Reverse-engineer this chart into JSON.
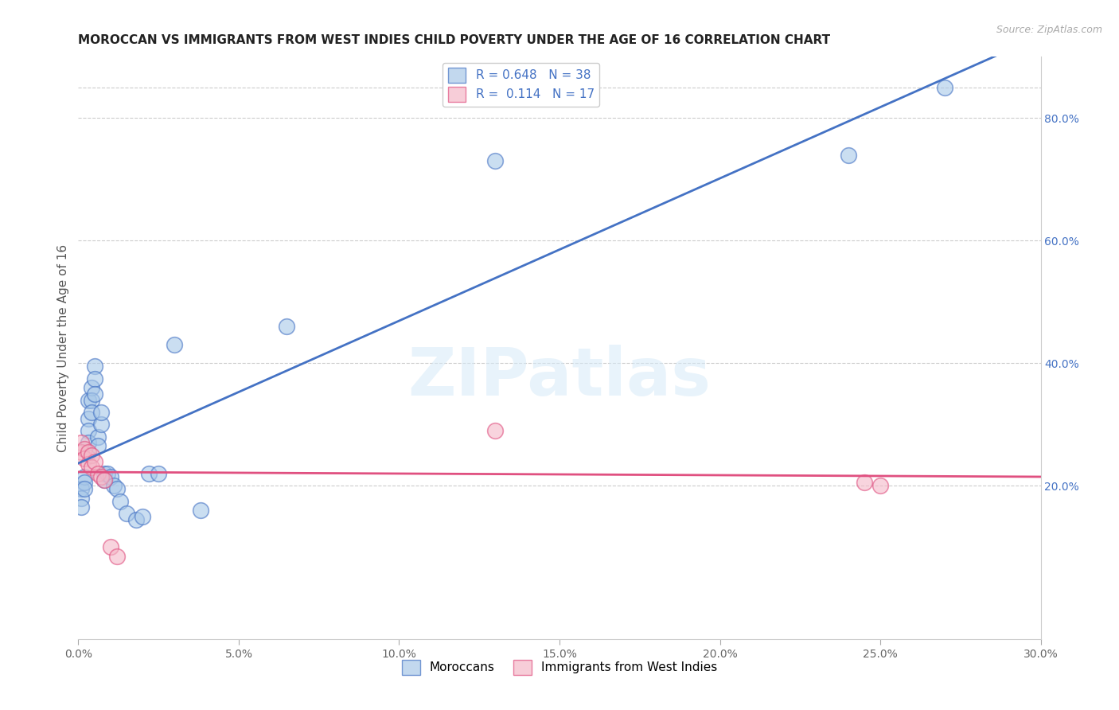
{
  "title": "MOROCCAN VS IMMIGRANTS FROM WEST INDIES CHILD POVERTY UNDER THE AGE OF 16 CORRELATION CHART",
  "source": "Source: ZipAtlas.com",
  "ylabel": "Child Poverty Under the Age of 16",
  "xlim": [
    0.0,
    0.3
  ],
  "ylim": [
    -0.05,
    0.9
  ],
  "xticks": [
    0.0,
    0.05,
    0.1,
    0.15,
    0.2,
    0.25,
    0.3
  ],
  "yticks_right": [
    0.2,
    0.4,
    0.6,
    0.8
  ],
  "blue_color": "#a8c8e8",
  "blue_color_dark": "#4472c4",
  "pink_color": "#f4b8c8",
  "pink_color_dark": "#e05080",
  "r_blue": 0.648,
  "n_blue": 38,
  "r_pink": 0.114,
  "n_pink": 17,
  "blue_label": "Moroccans",
  "pink_label": "Immigrants from West Indies",
  "watermark": "ZIPatlas",
  "blue_x": [
    0.001,
    0.001,
    0.001,
    0.002,
    0.002,
    0.002,
    0.003,
    0.003,
    0.003,
    0.003,
    0.004,
    0.004,
    0.004,
    0.005,
    0.005,
    0.005,
    0.006,
    0.006,
    0.007,
    0.007,
    0.008,
    0.008,
    0.009,
    0.01,
    0.011,
    0.012,
    0.013,
    0.015,
    0.018,
    0.02,
    0.022,
    0.025,
    0.03,
    0.038,
    0.065,
    0.13,
    0.24,
    0.27
  ],
  "blue_y": [
    0.195,
    0.18,
    0.165,
    0.215,
    0.205,
    0.195,
    0.34,
    0.31,
    0.29,
    0.27,
    0.36,
    0.34,
    0.32,
    0.395,
    0.375,
    0.35,
    0.28,
    0.265,
    0.3,
    0.32,
    0.22,
    0.21,
    0.22,
    0.215,
    0.2,
    0.195,
    0.175,
    0.155,
    0.145,
    0.15,
    0.22,
    0.22,
    0.43,
    0.16,
    0.46,
    0.73,
    0.74,
    0.85
  ],
  "pink_x": [
    0.001,
    0.001,
    0.002,
    0.002,
    0.003,
    0.003,
    0.004,
    0.004,
    0.005,
    0.006,
    0.007,
    0.008,
    0.01,
    0.012,
    0.13,
    0.245,
    0.25
  ],
  "pink_y": [
    0.27,
    0.255,
    0.26,
    0.245,
    0.255,
    0.235,
    0.25,
    0.23,
    0.24,
    0.22,
    0.215,
    0.21,
    0.1,
    0.085,
    0.29,
    0.205,
    0.2
  ]
}
